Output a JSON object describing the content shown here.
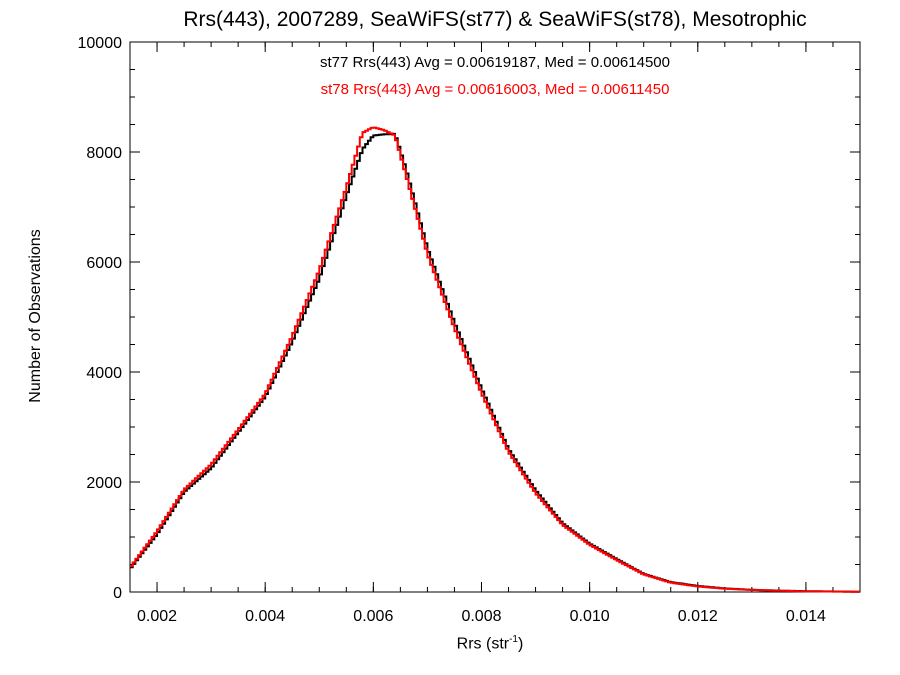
{
  "chart_data": {
    "type": "line",
    "title": "Rrs(443), 2007289, SeaWiFS(st77) & SeaWiFS(st78), Mesotrophic",
    "xlabel_base": "Rrs (str",
    "xlabel_sup": "-1",
    "xlabel_close": ")",
    "ylabel": "Number of Observations",
    "xlim": [
      0.0015,
      0.015
    ],
    "ylim": [
      0,
      10000
    ],
    "xticks": [
      {
        "value": 0.002,
        "label": "0.002"
      },
      {
        "value": 0.004,
        "label": "0.004"
      },
      {
        "value": 0.006,
        "label": "0.006"
      },
      {
        "value": 0.008,
        "label": "0.008"
      },
      {
        "value": 0.01,
        "label": "0.010"
      },
      {
        "value": 0.012,
        "label": "0.012"
      },
      {
        "value": 0.014,
        "label": "0.014"
      }
    ],
    "yticks": [
      {
        "value": 0,
        "label": "0"
      },
      {
        "value": 2000,
        "label": "2000"
      },
      {
        "value": 4000,
        "label": "4000"
      },
      {
        "value": 6000,
        "label": "6000"
      },
      {
        "value": 8000,
        "label": "8000"
      },
      {
        "value": 10000,
        "label": "10000"
      }
    ],
    "annotations": [
      {
        "text": "st77 Rrs(443) Avg = 0.00619187, Med = 0.00614500",
        "color": "#000000"
      },
      {
        "text": "st78 Rrs(443) Avg = 0.00616003, Med = 0.00611450",
        "color": "#ff0000"
      }
    ],
    "grid": false,
    "series": [
      {
        "name": "st77",
        "color": "#000000",
        "step": "histogram",
        "x": [
          0.0015,
          0.002,
          0.0025,
          0.003,
          0.0035,
          0.004,
          0.0045,
          0.005,
          0.0055,
          0.0058,
          0.006,
          0.0062,
          0.0064,
          0.0066,
          0.007,
          0.0075,
          0.008,
          0.0085,
          0.009,
          0.0095,
          0.01,
          0.0105,
          0.011,
          0.0115,
          0.012,
          0.0125,
          0.013,
          0.0135,
          0.014,
          0.015
        ],
        "values": [
          420,
          1050,
          1820,
          2250,
          2900,
          3550,
          4550,
          5700,
          7200,
          8050,
          8300,
          8320,
          8330,
          7700,
          6250,
          4900,
          3700,
          2600,
          1850,
          1250,
          880,
          600,
          330,
          180,
          110,
          65,
          40,
          25,
          15,
          5
        ]
      },
      {
        "name": "st78",
        "color": "#ff0000",
        "step": "histogram",
        "x": [
          0.0015,
          0.002,
          0.0025,
          0.003,
          0.0035,
          0.004,
          0.0045,
          0.005,
          0.0055,
          0.0058,
          0.006,
          0.0062,
          0.0064,
          0.0066,
          0.007,
          0.0075,
          0.008,
          0.0085,
          0.009,
          0.0095,
          0.01,
          0.0105,
          0.011,
          0.0115,
          0.012,
          0.0125,
          0.013,
          0.0135,
          0.014,
          0.015
        ],
        "values": [
          440,
          1100,
          1860,
          2320,
          2950,
          3600,
          4650,
          5850,
          7350,
          8350,
          8450,
          8400,
          8300,
          7600,
          6150,
          4800,
          3620,
          2550,
          1800,
          1220,
          860,
          580,
          320,
          170,
          100,
          60,
          38,
          22,
          12,
          4
        ]
      }
    ]
  }
}
